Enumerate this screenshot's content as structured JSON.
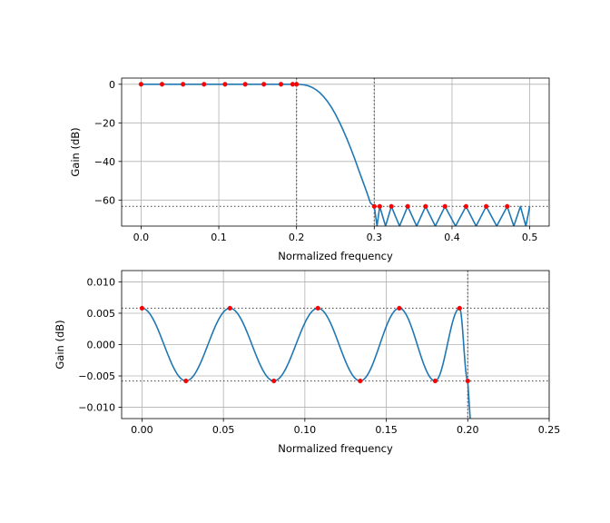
{
  "colors": {
    "response_line": "#1f77b4",
    "extrema_points": "#ff0000",
    "point_edge": "#d62728",
    "grid": "#b0b0b0",
    "reference_lines": "#555555",
    "background": "#ffffff"
  },
  "chart_data": [
    {
      "type": "line",
      "title": "",
      "xlabel": "Normalized frequency",
      "ylabel": "Gain (dB)",
      "xlim": [
        -0.025,
        0.525
      ],
      "ylim": [
        -73.5,
        3.2
      ],
      "xticks": [
        0.0,
        0.1,
        0.2,
        0.3,
        0.4,
        0.5
      ],
      "xtick_labels": [
        "0.0",
        "0.1",
        "0.2",
        "0.3",
        "0.4",
        "0.5"
      ],
      "yticks": [
        0,
        -20,
        -40,
        -60
      ],
      "ytick_labels": [
        "0",
        "−20",
        "−40",
        "−60"
      ],
      "grid": true,
      "passband_edge": 0.2,
      "stopband_edge": 0.3,
      "stopband_level_db": -63.3,
      "series": [
        {
          "kind": "line",
          "x": [
            0.0,
            0.19,
            0.2,
            0.205,
            0.21,
            0.215,
            0.22,
            0.225,
            0.23,
            0.235,
            0.24,
            0.245,
            0.25,
            0.255,
            0.26,
            0.265,
            0.27,
            0.275,
            0.28,
            0.285,
            0.29,
            0.295,
            0.3,
            0.3035,
            0.307,
            0.3145,
            0.322,
            0.3325,
            0.343,
            0.3545,
            0.366,
            0.3785,
            0.391,
            0.4045,
            0.418,
            0.431,
            0.444,
            0.4575,
            0.471,
            0.4795,
            0.488,
            0.495,
            0.5
          ],
          "y": [
            0.0,
            0.0,
            0.0,
            -0.1,
            -0.3,
            -0.8,
            -1.6,
            -2.8,
            -4.4,
            -6.5,
            -9.0,
            -12.0,
            -15.5,
            -19.5,
            -23.8,
            -28.5,
            -33.5,
            -38.8,
            -44.5,
            -50.0,
            -55.5,
            -61.5,
            -63.3,
            -73.5,
            -63.3,
            -73.5,
            -63.3,
            -73.5,
            -63.3,
            -73.5,
            -63.3,
            -73.5,
            -63.3,
            -73.5,
            -63.3,
            -73.5,
            -63.3,
            -73.5,
            -63.3,
            -73.5,
            -63.3,
            -73.5,
            -63.3
          ]
        },
        {
          "kind": "points",
          "x": [
            0.0,
            0.027,
            0.054,
            0.081,
            0.108,
            0.134,
            0.158,
            0.18,
            0.195,
            0.2,
            0.3,
            0.307,
            0.322,
            0.343,
            0.366,
            0.391,
            0.418,
            0.444,
            0.471
          ],
          "y": [
            0.0,
            0.0,
            0.0,
            0.0,
            0.0,
            0.0,
            0.0,
            0.0,
            0.0,
            0.0,
            -63.3,
            -63.3,
            -63.3,
            -63.3,
            -63.3,
            -63.3,
            -63.3,
            -63.3,
            -63.3
          ]
        }
      ]
    },
    {
      "type": "line",
      "title": "",
      "xlabel": "Normalized frequency",
      "ylabel": "Gain (dB)",
      "xlim": [
        -0.0125,
        0.25
      ],
      "ylim": [
        -0.0118,
        0.0118
      ],
      "xticks": [
        0.0,
        0.05,
        0.1,
        0.15,
        0.2,
        0.25
      ],
      "xtick_labels": [
        "0.00",
        "0.05",
        "0.10",
        "0.15",
        "0.20",
        "0.25"
      ],
      "yticks": [
        0.01,
        0.005,
        0.0,
        -0.005,
        -0.01
      ],
      "ytick_labels": [
        "0.010",
        "0.005",
        "0.000",
        "−0.005",
        "−0.010"
      ],
      "grid": true,
      "passband_edge": 0.2,
      "ripple_db": 0.0058,
      "series": [
        {
          "kind": "line",
          "extrema_x": [
            0.0,
            0.027,
            0.054,
            0.081,
            0.108,
            0.134,
            0.158,
            0.18,
            0.195,
            0.2
          ],
          "extrema_y": [
            0.0058,
            -0.0058,
            0.0058,
            -0.0058,
            0.0058,
            -0.0058,
            0.0058,
            -0.0058,
            0.0058,
            -0.0058
          ],
          "tail_x": [
            0.2,
            0.2015
          ],
          "tail_y": [
            -0.0058,
            -0.0118
          ]
        },
        {
          "kind": "points",
          "x": [
            0.0,
            0.027,
            0.054,
            0.081,
            0.108,
            0.134,
            0.158,
            0.18,
            0.195,
            0.2
          ],
          "y": [
            0.0058,
            -0.0058,
            0.0058,
            -0.0058,
            0.0058,
            -0.0058,
            0.0058,
            -0.0058,
            0.0058,
            -0.0058
          ]
        }
      ]
    }
  ]
}
